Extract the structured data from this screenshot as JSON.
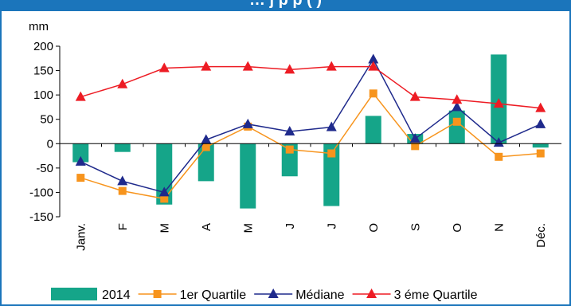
{
  "title": "…  j    p       p                          (    )",
  "chart_data": {
    "type": "bar",
    "unit_label": "mm",
    "categories": [
      "Janv.",
      "F",
      "M",
      "A",
      "M",
      "J",
      "J",
      "O",
      "S",
      "O",
      "N",
      "Déc."
    ],
    "ylim": [
      -150,
      200
    ],
    "yticks": [
      200,
      150,
      100,
      50,
      0,
      -50,
      -100,
      -150
    ],
    "ytick_labels": [
      "200",
      "150",
      "100",
      "50",
      "0",
      "-50",
      "-100",
      "-150"
    ],
    "legend_position": "bottom",
    "series": [
      {
        "name": "2014",
        "type": "bar",
        "color": "#15a589",
        "values": [
          -38,
          -17,
          -125,
          -77,
          -133,
          -67,
          -128,
          57,
          20,
          68,
          183,
          -8
        ]
      },
      {
        "name": "1er Quartile",
        "type": "line",
        "marker": "square",
        "color": "#f7941d",
        "values": [
          -70,
          -97,
          -113,
          -7,
          35,
          -12,
          -20,
          103,
          -5,
          45,
          -27,
          -20
        ]
      },
      {
        "name": "Médiane",
        "type": "line",
        "marker": "triangle",
        "color": "#1f2a8c",
        "values": [
          -37,
          -77,
          -100,
          8,
          40,
          25,
          34,
          173,
          10,
          75,
          2,
          40
        ]
      },
      {
        "name": "3 éme Quartile",
        "type": "line",
        "marker": "triangle",
        "color": "#ed1c24",
        "values": [
          96,
          122,
          155,
          158,
          158,
          152,
          158,
          158,
          96,
          90,
          82,
          73
        ]
      }
    ]
  }
}
